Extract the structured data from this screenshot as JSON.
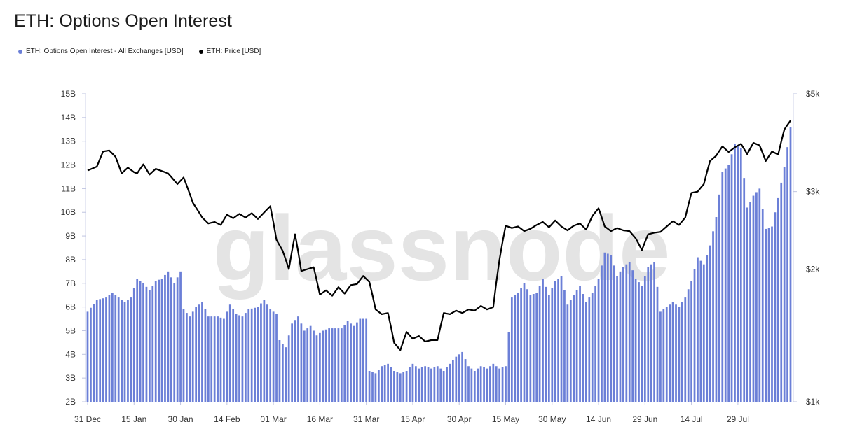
{
  "title": "ETH: Options Open Interest",
  "legend": [
    {
      "label": "ETH: Options Open Interest - All Exchanges [USD]",
      "color": "#6b7fd7"
    },
    {
      "label": "ETH: Price [USD]",
      "color": "#000000"
    }
  ],
  "watermark": "glassnode",
  "chart_data": {
    "type": "bar+line",
    "title": "ETH: Options Open Interest",
    "x_labels": [
      "31 Dec",
      "15 Jan",
      "30 Jan",
      "14 Feb",
      "01 Mar",
      "16 Mar",
      "31 Mar",
      "15 Apr",
      "30 Apr",
      "15 May",
      "30 May",
      "14 Jun",
      "29 Jun",
      "14 Jul",
      "29 Jul"
    ],
    "x_label_day_index": [
      0,
      15,
      30,
      45,
      60,
      75,
      90,
      105,
      120,
      135,
      150,
      165,
      180,
      195,
      210
    ],
    "day_count": 228,
    "grid": false,
    "legend_position": "top-left",
    "left_axis": {
      "label": "",
      "scale": "linear",
      "range_billion_usd": [
        2,
        15
      ],
      "tick_labels": [
        "2B",
        "3B",
        "4B",
        "5B",
        "6B",
        "7B",
        "8B",
        "9B",
        "10B",
        "11B",
        "12B",
        "13B",
        "14B",
        "15B"
      ]
    },
    "right_axis": {
      "label": "",
      "scale": "log",
      "range_usd": [
        1000,
        5000
      ],
      "tick_labels": [
        "$1k",
        "$2k",
        "$3k",
        "$5k"
      ],
      "tick_values": [
        1000,
        2000,
        3000,
        5000
      ]
    },
    "series": [
      {
        "name": "ETH: Options Open Interest - All Exchanges [USD]",
        "type": "bar",
        "axis": "left",
        "color": "#6b7fd7",
        "unit": "billion USD",
        "anchors": [
          [
            0,
            5.8
          ],
          [
            3,
            6.3
          ],
          [
            6,
            6.4
          ],
          [
            8,
            6.6
          ],
          [
            12,
            6.2
          ],
          [
            14,
            6.4
          ],
          [
            16,
            7.2
          ],
          [
            18,
            7.0
          ],
          [
            20,
            6.7
          ],
          [
            22,
            7.1
          ],
          [
            24,
            7.2
          ],
          [
            26,
            7.5
          ],
          [
            28,
            7.0
          ],
          [
            30,
            7.5
          ],
          [
            31,
            5.9
          ],
          [
            33,
            5.6
          ],
          [
            35,
            6.0
          ],
          [
            37,
            6.2
          ],
          [
            39,
            5.6
          ],
          [
            42,
            5.6
          ],
          [
            44,
            5.5
          ],
          [
            46,
            6.1
          ],
          [
            48,
            5.7
          ],
          [
            50,
            5.6
          ],
          [
            52,
            5.9
          ],
          [
            55,
            6.0
          ],
          [
            57,
            6.3
          ],
          [
            59,
            5.9
          ],
          [
            61,
            5.7
          ],
          [
            62,
            4.6
          ],
          [
            64,
            4.3
          ],
          [
            66,
            5.3
          ],
          [
            68,
            5.6
          ],
          [
            70,
            5.0
          ],
          [
            72,
            5.2
          ],
          [
            74,
            4.8
          ],
          [
            76,
            5.0
          ],
          [
            78,
            5.1
          ],
          [
            80,
            5.1
          ],
          [
            82,
            5.1
          ],
          [
            84,
            5.4
          ],
          [
            86,
            5.2
          ],
          [
            88,
            5.5
          ],
          [
            90,
            5.5
          ],
          [
            91,
            3.3
          ],
          [
            93,
            3.2
          ],
          [
            95,
            3.5
          ],
          [
            97,
            3.6
          ],
          [
            99,
            3.3
          ],
          [
            101,
            3.2
          ],
          [
            103,
            3.3
          ],
          [
            105,
            3.6
          ],
          [
            107,
            3.4
          ],
          [
            109,
            3.5
          ],
          [
            111,
            3.4
          ],
          [
            113,
            3.5
          ],
          [
            115,
            3.3
          ],
          [
            117,
            3.6
          ],
          [
            119,
            3.9
          ],
          [
            121,
            4.1
          ],
          [
            123,
            3.5
          ],
          [
            125,
            3.3
          ],
          [
            127,
            3.5
          ],
          [
            129,
            3.4
          ],
          [
            131,
            3.6
          ],
          [
            133,
            3.4
          ],
          [
            135,
            3.5
          ],
          [
            137,
            6.4
          ],
          [
            139,
            6.6
          ],
          [
            141,
            7.0
          ],
          [
            143,
            6.5
          ],
          [
            145,
            6.6
          ],
          [
            147,
            7.2
          ],
          [
            149,
            6.5
          ],
          [
            151,
            7.1
          ],
          [
            153,
            7.3
          ],
          [
            155,
            6.1
          ],
          [
            157,
            6.5
          ],
          [
            159,
            6.9
          ],
          [
            161,
            6.2
          ],
          [
            163,
            6.6
          ],
          [
            165,
            7.2
          ],
          [
            167,
            8.3
          ],
          [
            169,
            8.2
          ],
          [
            171,
            7.3
          ],
          [
            173,
            7.7
          ],
          [
            175,
            7.9
          ],
          [
            177,
            7.2
          ],
          [
            179,
            6.9
          ],
          [
            181,
            7.7
          ],
          [
            183,
            7.9
          ],
          [
            185,
            5.8
          ],
          [
            187,
            6.0
          ],
          [
            189,
            6.2
          ],
          [
            191,
            6.0
          ],
          [
            193,
            6.4
          ],
          [
            195,
            7.1
          ],
          [
            197,
            8.1
          ],
          [
            199,
            7.8
          ],
          [
            201,
            8.6
          ],
          [
            203,
            9.8
          ],
          [
            205,
            11.7
          ],
          [
            207,
            12.0
          ],
          [
            209,
            12.9
          ],
          [
            211,
            12.7
          ],
          [
            213,
            10.2
          ],
          [
            215,
            10.7
          ],
          [
            217,
            11.0
          ],
          [
            219,
            9.3
          ],
          [
            221,
            9.4
          ],
          [
            223,
            10.6
          ],
          [
            225,
            11.9
          ],
          [
            227,
            13.6
          ]
        ]
      },
      {
        "name": "ETH: Price [USD]",
        "type": "line",
        "axis": "right",
        "color": "#000000",
        "unit": "USD",
        "anchors": [
          [
            0,
            3350
          ],
          [
            3,
            3420
          ],
          [
            5,
            3700
          ],
          [
            7,
            3720
          ],
          [
            9,
            3600
          ],
          [
            11,
            3300
          ],
          [
            13,
            3400
          ],
          [
            15,
            3320
          ],
          [
            16,
            3300
          ],
          [
            18,
            3460
          ],
          [
            20,
            3280
          ],
          [
            22,
            3380
          ],
          [
            24,
            3340
          ],
          [
            26,
            3300
          ],
          [
            29,
            3120
          ],
          [
            31,
            3230
          ],
          [
            34,
            2830
          ],
          [
            37,
            2620
          ],
          [
            39,
            2540
          ],
          [
            41,
            2560
          ],
          [
            43,
            2520
          ],
          [
            45,
            2660
          ],
          [
            47,
            2610
          ],
          [
            49,
            2670
          ],
          [
            51,
            2620
          ],
          [
            53,
            2680
          ],
          [
            55,
            2600
          ],
          [
            57,
            2690
          ],
          [
            59,
            2780
          ],
          [
            61,
            2330
          ],
          [
            63,
            2200
          ],
          [
            65,
            2000
          ],
          [
            67,
            2400
          ],
          [
            69,
            1980
          ],
          [
            71,
            2000
          ],
          [
            73,
            2020
          ],
          [
            75,
            1750
          ],
          [
            77,
            1790
          ],
          [
            79,
            1740
          ],
          [
            81,
            1820
          ],
          [
            83,
            1760
          ],
          [
            85,
            1840
          ],
          [
            87,
            1850
          ],
          [
            89,
            1930
          ],
          [
            91,
            1870
          ],
          [
            93,
            1620
          ],
          [
            95,
            1580
          ],
          [
            97,
            1590
          ],
          [
            99,
            1360
          ],
          [
            101,
            1310
          ],
          [
            103,
            1440
          ],
          [
            105,
            1390
          ],
          [
            107,
            1410
          ],
          [
            109,
            1370
          ],
          [
            111,
            1380
          ],
          [
            113,
            1380
          ],
          [
            115,
            1590
          ],
          [
            117,
            1580
          ],
          [
            119,
            1610
          ],
          [
            121,
            1590
          ],
          [
            123,
            1620
          ],
          [
            125,
            1610
          ],
          [
            127,
            1650
          ],
          [
            129,
            1620
          ],
          [
            131,
            1640
          ],
          [
            133,
            2100
          ],
          [
            135,
            2510
          ],
          [
            137,
            2480
          ],
          [
            139,
            2500
          ],
          [
            141,
            2440
          ],
          [
            143,
            2470
          ],
          [
            145,
            2520
          ],
          [
            147,
            2560
          ],
          [
            149,
            2490
          ],
          [
            151,
            2580
          ],
          [
            153,
            2500
          ],
          [
            155,
            2450
          ],
          [
            157,
            2510
          ],
          [
            159,
            2540
          ],
          [
            161,
            2460
          ],
          [
            163,
            2640
          ],
          [
            165,
            2750
          ],
          [
            167,
            2500
          ],
          [
            169,
            2440
          ],
          [
            171,
            2480
          ],
          [
            173,
            2450
          ],
          [
            175,
            2440
          ],
          [
            177,
            2350
          ],
          [
            179,
            2210
          ],
          [
            181,
            2400
          ],
          [
            183,
            2420
          ],
          [
            185,
            2430
          ],
          [
            187,
            2500
          ],
          [
            189,
            2570
          ],
          [
            191,
            2520
          ],
          [
            193,
            2620
          ],
          [
            195,
            2980
          ],
          [
            197,
            3000
          ],
          [
            199,
            3120
          ],
          [
            201,
            3520
          ],
          [
            203,
            3620
          ],
          [
            205,
            3800
          ],
          [
            207,
            3690
          ],
          [
            209,
            3780
          ],
          [
            211,
            3850
          ],
          [
            213,
            3650
          ],
          [
            215,
            3870
          ],
          [
            217,
            3820
          ],
          [
            219,
            3520
          ],
          [
            221,
            3700
          ],
          [
            223,
            3640
          ],
          [
            225,
            4150
          ],
          [
            227,
            4350
          ]
        ]
      }
    ]
  }
}
